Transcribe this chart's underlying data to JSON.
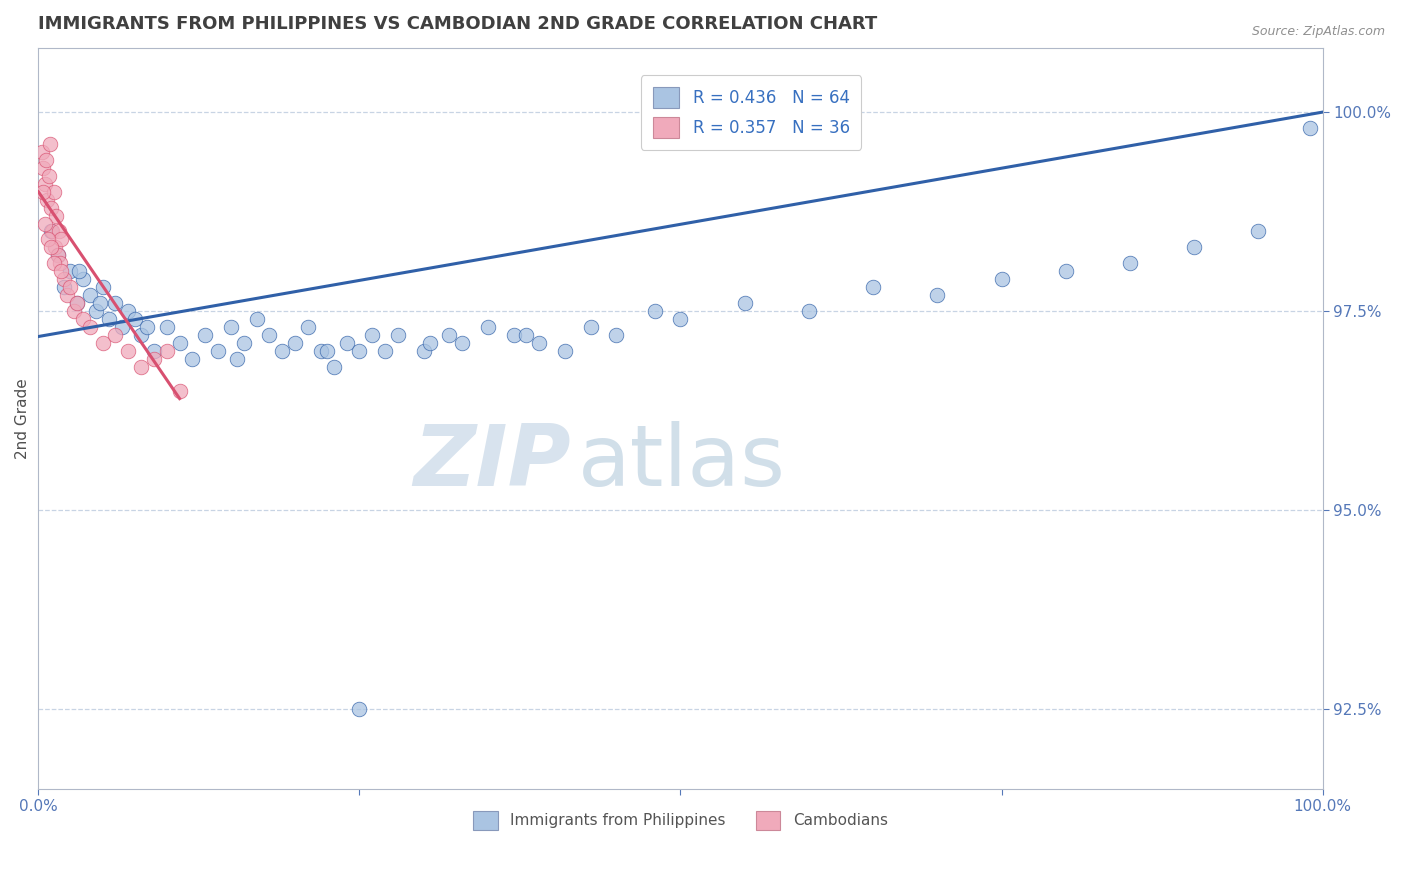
{
  "title": "IMMIGRANTS FROM PHILIPPINES VS CAMBODIAN 2ND GRADE CORRELATION CHART",
  "source": "Source: ZipAtlas.com",
  "ylabel": "2nd Grade",
  "xlim": [
    0.0,
    100.0
  ],
  "ylim": [
    91.5,
    100.8
  ],
  "yticks": [
    92.5,
    95.0,
    97.5,
    100.0
  ],
  "xticks": [
    0.0,
    25.0,
    50.0,
    75.0,
    100.0
  ],
  "xtick_labels": [
    "0.0%",
    "",
    "",
    "",
    "100.0%"
  ],
  "ytick_labels": [
    "92.5%",
    "95.0%",
    "97.5%",
    "100.0%"
  ],
  "blue_R": 0.436,
  "blue_N": 64,
  "pink_R": 0.357,
  "pink_N": 36,
  "blue_color": "#aac4e2",
  "pink_color": "#f0aabb",
  "blue_line_color": "#3060a8",
  "pink_line_color": "#d85070",
  "legend_text_color": "#3870c0",
  "watermark_zip": "ZIP",
  "watermark_atlas": "atlas",
  "title_color": "#404040",
  "axis_color": "#b0b8c8",
  "grid_color": "#c8d4e4",
  "tick_color": "#5578b8",
  "blue_x": [
    1.0,
    1.5,
    2.0,
    2.5,
    3.0,
    3.5,
    4.0,
    4.5,
    5.0,
    5.5,
    6.0,
    6.5,
    7.0,
    7.5,
    8.0,
    9.0,
    10.0,
    11.0,
    12.0,
    13.0,
    14.0,
    15.0,
    16.0,
    17.0,
    18.0,
    19.0,
    20.0,
    21.0,
    22.0,
    23.0,
    24.0,
    25.0,
    26.0,
    27.0,
    28.0,
    30.0,
    32.0,
    33.0,
    35.0,
    37.0,
    39.0,
    41.0,
    43.0,
    45.0,
    48.0,
    50.0,
    55.0,
    60.0,
    65.0,
    70.0,
    75.0,
    80.0,
    85.0,
    90.0,
    95.0,
    99.0,
    3.2,
    4.8,
    8.5,
    15.5,
    22.5,
    30.5,
    38.0,
    25.0
  ],
  "blue_y": [
    98.5,
    98.2,
    97.8,
    98.0,
    97.6,
    97.9,
    97.7,
    97.5,
    97.8,
    97.4,
    97.6,
    97.3,
    97.5,
    97.4,
    97.2,
    97.0,
    97.3,
    97.1,
    96.9,
    97.2,
    97.0,
    97.3,
    97.1,
    97.4,
    97.2,
    97.0,
    97.1,
    97.3,
    97.0,
    96.8,
    97.1,
    97.0,
    97.2,
    97.0,
    97.2,
    97.0,
    97.2,
    97.1,
    97.3,
    97.2,
    97.1,
    97.0,
    97.3,
    97.2,
    97.5,
    97.4,
    97.6,
    97.5,
    97.8,
    97.7,
    97.9,
    98.0,
    98.1,
    98.3,
    98.5,
    99.8,
    98.0,
    97.6,
    97.3,
    96.9,
    97.0,
    97.1,
    97.2,
    92.5
  ],
  "pink_x": [
    0.3,
    0.4,
    0.5,
    0.6,
    0.7,
    0.8,
    0.9,
    1.0,
    1.1,
    1.2,
    1.3,
    1.4,
    1.5,
    1.6,
    1.7,
    1.8,
    2.0,
    2.2,
    2.5,
    2.8,
    3.0,
    3.5,
    4.0,
    5.0,
    6.0,
    7.0,
    8.0,
    9.0,
    10.0,
    0.35,
    0.55,
    0.75,
    0.95,
    1.25,
    1.75,
    11.0
  ],
  "pink_y": [
    99.5,
    99.3,
    99.1,
    99.4,
    98.9,
    99.2,
    99.6,
    98.8,
    98.5,
    99.0,
    98.3,
    98.7,
    98.2,
    98.5,
    98.1,
    98.4,
    97.9,
    97.7,
    97.8,
    97.5,
    97.6,
    97.4,
    97.3,
    97.1,
    97.2,
    97.0,
    96.8,
    96.9,
    97.0,
    99.0,
    98.6,
    98.4,
    98.3,
    98.1,
    98.0,
    96.5
  ],
  "blue_line_x": [
    0,
    100
  ],
  "blue_line_y": [
    97.18,
    100.0
  ],
  "pink_line_x": [
    0,
    11
  ],
  "pink_line_y": [
    99.0,
    96.4
  ]
}
